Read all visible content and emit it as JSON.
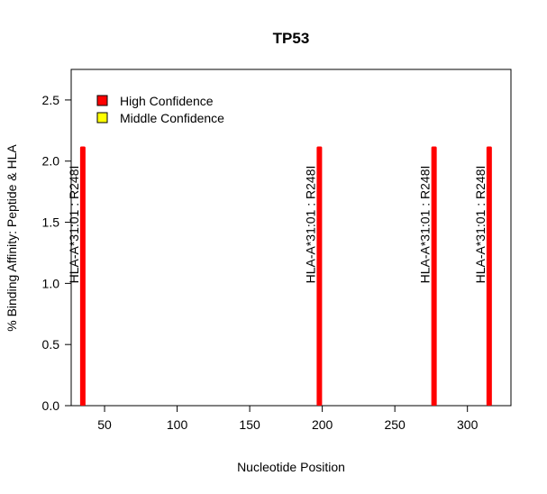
{
  "chart_data": {
    "type": "bar",
    "title": "TP53",
    "xlabel": "Nucleotide Position",
    "ylabel": "% Binding Affinity: Peptide & HLA",
    "xlim": [
      27,
      330
    ],
    "ylim": [
      0,
      2.75
    ],
    "x_ticks": [
      50,
      100,
      150,
      200,
      250,
      300
    ],
    "y_ticks": [
      0.0,
      0.5,
      1.0,
      1.5,
      2.0,
      2.5
    ],
    "x_tick_labels": [
      "50",
      "100",
      "150",
      "200",
      "250",
      "300"
    ],
    "y_tick_labels": [
      "0.0",
      "0.5",
      "1.0",
      "1.5",
      "2.0",
      "2.5"
    ],
    "grid": false,
    "legend_position": "top-left",
    "legend": [
      {
        "label": "High Confidence",
        "color": "#ff0000"
      },
      {
        "label": "Middle Confidence",
        "color": "#ffff00"
      }
    ],
    "bars": [
      {
        "x": 35,
        "value": 2.12,
        "label": "HLA-A*31:01 : R248I",
        "color": "#ff0000"
      },
      {
        "x": 198,
        "value": 2.12,
        "label": "HLA-A*31:01 : R248I",
        "color": "#ff0000"
      },
      {
        "x": 277,
        "value": 2.12,
        "label": "HLA-A*31:01 : R248I",
        "color": "#ff0000"
      },
      {
        "x": 315,
        "value": 2.12,
        "label": "HLA-A*31:01 : R248I",
        "color": "#ff0000"
      }
    ]
  }
}
